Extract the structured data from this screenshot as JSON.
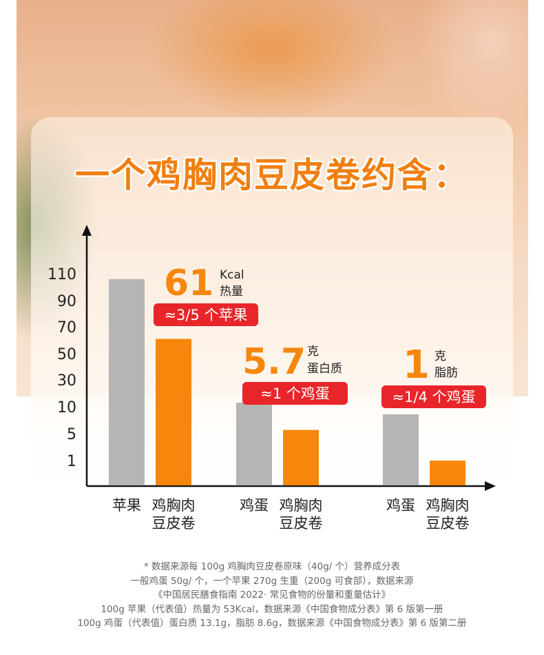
{
  "title": "一个鸡胸肉豆皮卷约含：",
  "chart_data": {
    "type": "bar",
    "yticks": [
      "110",
      "90",
      "70",
      "50",
      "30",
      "10",
      "5",
      "1"
    ],
    "groups": [
      {
        "headline": "61",
        "unit": "Kcal",
        "nutrient": "热量",
        "badge": "≈3/5 个苹果",
        "bars": [
          {
            "label": [
              "苹果"
            ],
            "value": 106,
            "color": "#b5b5b5"
          },
          {
            "label": [
              "鸡胸肉",
              "豆皮卷"
            ],
            "value": 61,
            "color": "#f7870c"
          }
        ]
      },
      {
        "headline": "5.7",
        "unit": "克",
        "nutrient": "蛋白质",
        "badge": "≈1 个鸡蛋",
        "bars": [
          {
            "label": [
              "鸡蛋"
            ],
            "value": 13.1,
            "color": "#b5b5b5"
          },
          {
            "label": [
              "鸡胸肉",
              "豆皮卷"
            ],
            "value": 5.7,
            "color": "#f7870c"
          }
        ]
      },
      {
        "headline": "1",
        "unit": "克",
        "nutrient": "脂肪",
        "badge": "≈1/4 个鸡蛋",
        "bars": [
          {
            "label": [
              "鸡蛋"
            ],
            "value": 8.6,
            "color": "#b5b5b5"
          },
          {
            "label": [
              "鸡胸肉",
              "豆皮卷"
            ],
            "value": 1,
            "color": "#f7870c"
          }
        ]
      }
    ]
  },
  "footnotes": [
    "* 数据来源每 100g 鸡胸肉豆皮卷原味（40g/ 个）营养成分表",
    "一般鸡蛋 50g/ 个，一个苹果 270g 生重（200g 可食部），数据来源",
    "《中国居民膳食指南 2022· 常见食物的份量和重量估计》",
    "100g 苹果（代表值）热量为 53Kcal，数据来源《中国食物成分表》第 6 版第一册",
    "100g 鸡蛋（代表值）蛋白质 13.1g，脂肪 8.6g，数据来源《中国食物成分表》第 6 版第二册"
  ],
  "colors": {
    "accent": "#f7870c",
    "badge": "#e8252a",
    "gray_bar": "#b5b5b5"
  }
}
